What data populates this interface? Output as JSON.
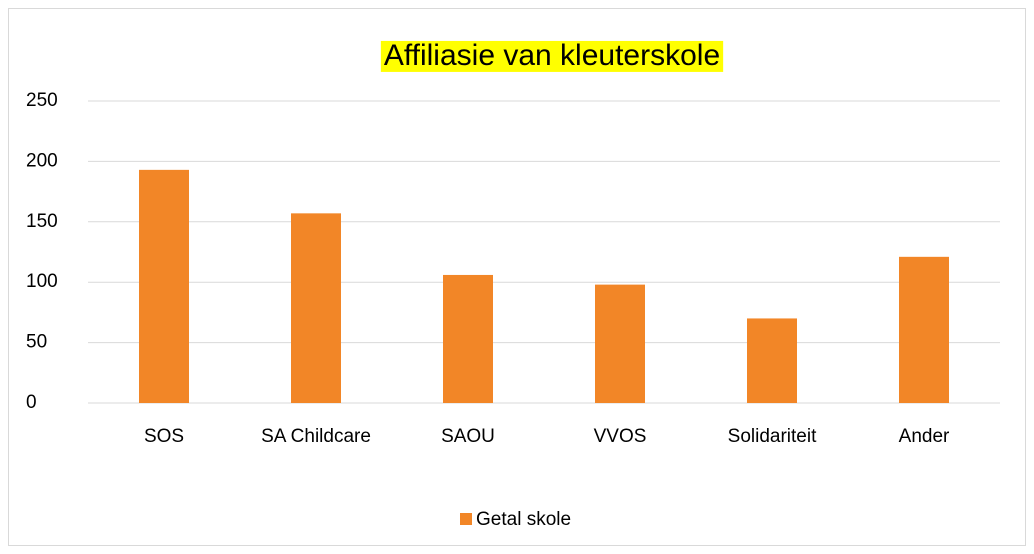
{
  "chart_data": {
    "type": "bar",
    "title": "Affiliasie van kleuterskole",
    "categories": [
      "SOS",
      "SA Childcare",
      "SAOU",
      "VVOS",
      "Solidariteit",
      "Ander"
    ],
    "series": [
      {
        "name": "Getal skole",
        "color": "#f28627",
        "values": [
          193,
          157,
          106,
          98,
          70,
          121
        ]
      }
    ],
    "ylim": [
      0,
      250
    ],
    "yticks": [
      0,
      50,
      100,
      150,
      200,
      250
    ],
    "grid": true,
    "legend": "bottom"
  }
}
